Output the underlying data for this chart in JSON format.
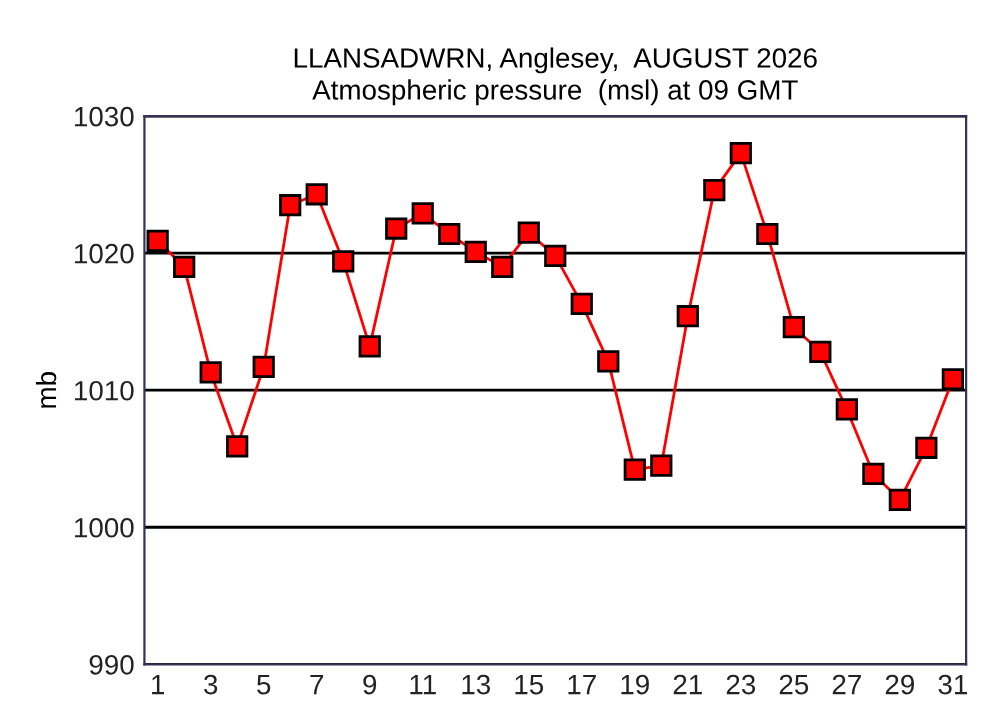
{
  "chart_data": {
    "type": "line",
    "title": "LLANSADWRN, Anglesey,  AUGUST 2026\nAtmospheric pressure  (msl) at 09 GMT",
    "ylabel": "mb",
    "x": [
      1,
      2,
      3,
      4,
      5,
      6,
      7,
      8,
      9,
      10,
      11,
      12,
      13,
      14,
      15,
      16,
      17,
      18,
      19,
      20,
      21,
      22,
      23,
      24,
      25,
      26,
      27,
      28,
      29,
      30,
      31
    ],
    "series": [
      {
        "color": "#ff0000",
        "values": [
          1020.9,
          1019.0,
          1011.3,
          1005.9,
          1011.7,
          1023.5,
          1024.3,
          1019.4,
          1013.2,
          1021.8,
          1022.9,
          1021.4,
          1020.1,
          1019.0,
          1021.5,
          1019.8,
          1016.3,
          1012.1,
          1004.2,
          1004.5,
          1015.4,
          1024.6,
          1027.3,
          1021.4,
          1014.6,
          1012.8,
          1008.6,
          1003.9,
          1002.0,
          1005.8,
          1010.8
        ]
      }
    ],
    "xlim": [
      0.5,
      31.5
    ],
    "xticks": [
      1,
      3,
      5,
      7,
      9,
      11,
      13,
      15,
      17,
      19,
      21,
      23,
      25,
      27,
      29,
      31
    ],
    "ylim": [
      990,
      1030
    ],
    "yticks": [
      990,
      1000,
      1010,
      1020,
      1030
    ],
    "grid": "y",
    "marker": "square",
    "line_style": "solid",
    "legend": false
  }
}
